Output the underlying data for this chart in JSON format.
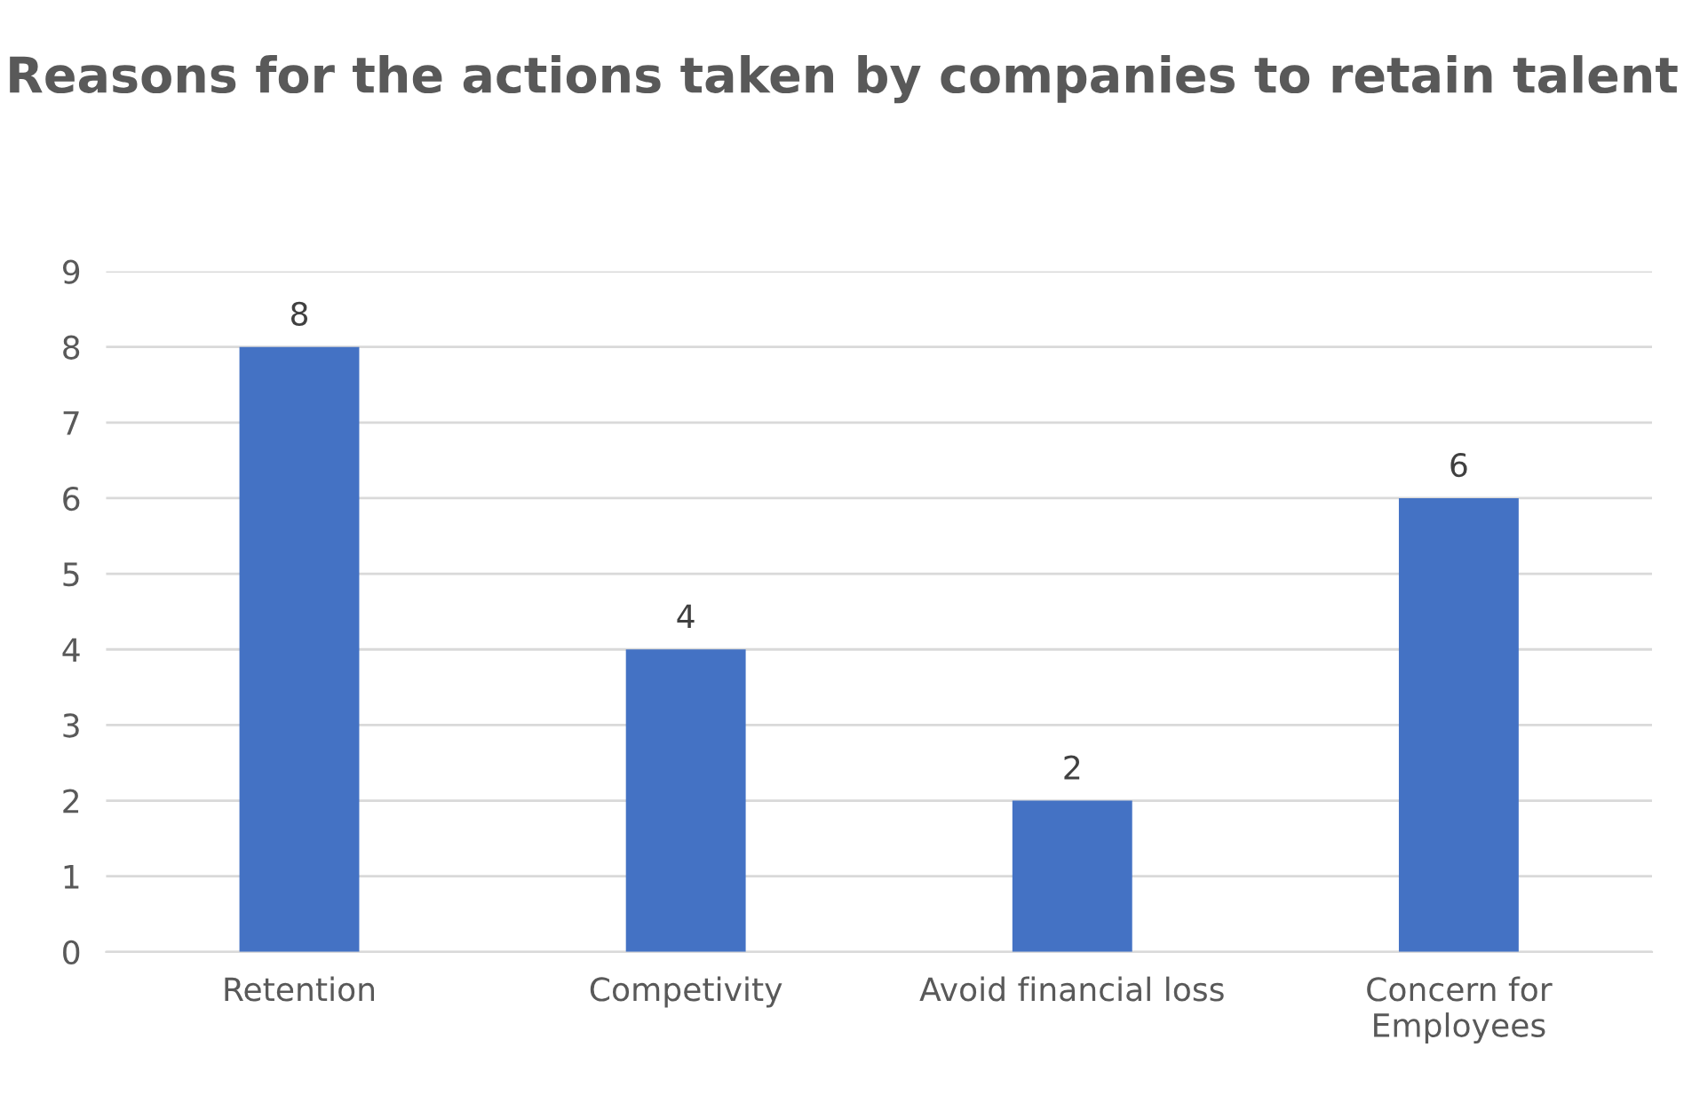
{
  "chart_data": {
    "type": "bar",
    "title": "Reasons for the actions taken by companies to retain talent",
    "categories": [
      "Retention",
      "Competivity",
      "Avoid financial loss",
      "Concern for\nEmployees"
    ],
    "values": [
      8,
      4,
      2,
      6
    ],
    "color": "#4472c4",
    "ylim": [
      0,
      9
    ],
    "yticks": [
      0,
      1,
      2,
      3,
      4,
      5,
      6,
      7,
      8,
      9
    ],
    "grid": "y",
    "data_labels": true,
    "legend": false
  }
}
